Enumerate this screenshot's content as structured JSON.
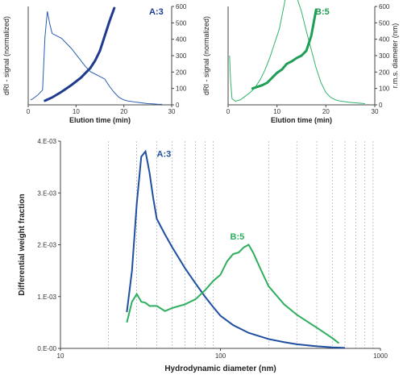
{
  "chart_data": [
    {
      "id": "A",
      "type": "line",
      "label": "A:3",
      "xlabel": "Elution time (min)",
      "ylabel": "dRI - signal (normalized)",
      "y2label": "",
      "xlim": [
        0,
        30
      ],
      "xticks": [
        "0",
        "10",
        "20",
        "30"
      ],
      "y2lim": [
        0,
        600
      ],
      "y2ticks": [
        "0",
        "100",
        "200",
        "300",
        "400",
        "500",
        "600"
      ],
      "colors": {
        "signal": "#2a5db0",
        "diameter": "#1f3a8f"
      },
      "series": [
        {
          "role": "signal",
          "x": [
            0.5,
            1,
            2,
            3,
            3.5,
            4,
            4.5,
            5,
            6,
            7,
            8,
            9,
            10,
            11,
            12,
            13,
            14,
            15,
            16,
            17,
            18,
            19,
            20,
            21,
            22,
            23,
            24,
            25,
            26,
            27,
            28
          ],
          "y": [
            0.04,
            0.05,
            0.08,
            0.12,
            0.55,
            0.76,
            0.66,
            0.58,
            0.56,
            0.54,
            0.5,
            0.46,
            0.41,
            0.36,
            0.31,
            0.27,
            0.25,
            0.23,
            0.21,
            0.15,
            0.1,
            0.06,
            0.04,
            0.03,
            0.025,
            0.02,
            0.015,
            0.01,
            0.008,
            0.005,
            0.004
          ]
        },
        {
          "role": "diameter",
          "x": [
            3.5,
            5,
            7,
            9,
            11,
            13,
            14,
            15,
            16,
            17,
            18
          ],
          "y2": [
            25,
            45,
            80,
            120,
            165,
            225,
            270,
            330,
            420,
            510,
            590
          ]
        }
      ]
    },
    {
      "id": "B",
      "type": "line",
      "label": "B:5",
      "xlabel": "Elution time (min)",
      "ylabel": "dRI - signal (normalized)",
      "y2label": "r.m.s. diameter (nm)",
      "xlim": [
        0,
        30
      ],
      "xticks": [
        "0",
        "10",
        "20",
        "30"
      ],
      "y2lim": [
        0,
        600
      ],
      "y2ticks": [
        "0",
        "100",
        "200",
        "300",
        "400",
        "500",
        "600"
      ],
      "colors": {
        "signal": "#2db56a",
        "diameter": "#1f9e55"
      },
      "series": [
        {
          "role": "signal",
          "x": [
            0.3,
            0.5,
            0.8,
            1.5,
            2.5,
            3.5,
            4.5,
            5.5,
            6.5,
            7.5,
            8.5,
            9.5,
            10.5,
            11,
            11.5,
            12,
            12.5,
            13,
            14,
            15,
            16,
            17,
            18,
            19,
            20,
            21,
            22,
            23,
            25,
            28
          ],
          "y": [
            0.4,
            0.2,
            0.05,
            0.03,
            0.04,
            0.07,
            0.1,
            0.14,
            0.2,
            0.28,
            0.38,
            0.5,
            0.62,
            0.72,
            0.82,
            0.93,
            1.0,
            0.97,
            0.88,
            0.76,
            0.6,
            0.45,
            0.3,
            0.18,
            0.1,
            0.06,
            0.04,
            0.03,
            0.02,
            0.01
          ]
        },
        {
          "role": "diameter",
          "x": [
            5,
            7,
            8,
            9,
            10,
            11,
            12,
            13,
            14,
            15,
            16,
            17,
            18
          ],
          "y2": [
            100,
            120,
            135,
            165,
            195,
            215,
            250,
            265,
            285,
            300,
            330,
            420,
            580
          ]
        }
      ]
    },
    {
      "id": "C",
      "type": "line",
      "xscale": "log",
      "xlabel": "Hydrodynamic diameter (nm)",
      "ylabel": "Differential weight fraction",
      "xlim": [
        10,
        1000
      ],
      "xticks": [
        "10",
        "100",
        "1000"
      ],
      "ylim": [
        0,
        0.004
      ],
      "yticks": [
        "0.E-00",
        "1.E-03",
        "2.E-03",
        "3.E-03",
        "4.E-03"
      ],
      "grid": "vertical dashed at log minors",
      "series": [
        {
          "name": "A:3",
          "color": "#1f4fa0",
          "x": [
            26,
            28,
            30,
            32,
            34,
            36,
            38,
            40,
            45,
            50,
            60,
            70,
            80,
            90,
            100,
            120,
            150,
            200,
            250,
            300,
            400,
            500,
            600
          ],
          "y": [
            0.0007,
            0.0015,
            0.0028,
            0.0037,
            0.0038,
            0.0034,
            0.0029,
            0.0025,
            0.0022,
            0.00195,
            0.00155,
            0.00125,
            0.001,
            0.0008,
            0.00063,
            0.00045,
            0.0003,
            0.00018,
            0.00012,
            8e-05,
            4e-05,
            2e-05,
            1e-05
          ]
        },
        {
          "name": "B:5",
          "color": "#2eaf5e",
          "x": [
            26,
            28,
            30,
            32,
            34,
            36,
            40,
            45,
            50,
            60,
            70,
            80,
            90,
            100,
            110,
            120,
            130,
            140,
            150,
            160,
            180,
            200,
            250,
            300,
            400,
            500,
            550
          ],
          "y": [
            0.0005,
            0.0009,
            0.00105,
            0.0009,
            0.00088,
            0.00082,
            0.00082,
            0.00072,
            0.00078,
            0.00085,
            0.00095,
            0.00112,
            0.0013,
            0.00142,
            0.00168,
            0.00182,
            0.00185,
            0.00195,
            0.002,
            0.00185,
            0.0015,
            0.0012,
            0.00085,
            0.00065,
            0.0004,
            0.0002,
            0.0001
          ]
        }
      ]
    }
  ]
}
